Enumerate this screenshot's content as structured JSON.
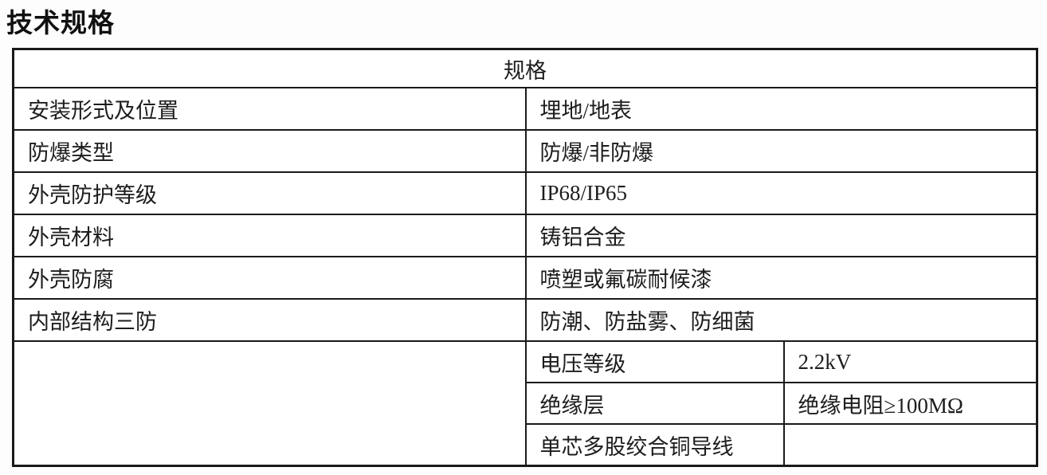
{
  "page": {
    "title": "技术规格",
    "colors": {
      "background": "#fdfdfd",
      "table_background": "#ffffff",
      "border": "#1a1a1a",
      "text": "#1d1d1d"
    }
  },
  "table": {
    "header": "规格",
    "rows": [
      {
        "label": "安装形式及位置",
        "value": "埋地/地表"
      },
      {
        "label": "防爆类型",
        "value": "防爆/非防爆"
      },
      {
        "label": "外壳防护等级",
        "value": "IP68/IP65"
      },
      {
        "label": "外壳材料",
        "value": "铸铝合金"
      },
      {
        "label": "外壳防腐",
        "value": "喷塑或氟碳耐候漆"
      },
      {
        "label": "内部结构三防",
        "value": "防潮、防盐雾、防细菌"
      }
    ],
    "sub_rows": [
      {
        "label": "电压等级",
        "value": "2.2kV"
      },
      {
        "label": "绝缘层",
        "value": "绝缘电阻≥100MΩ"
      },
      {
        "label": "单芯多股绞合铜导线",
        "value": ""
      }
    ]
  }
}
